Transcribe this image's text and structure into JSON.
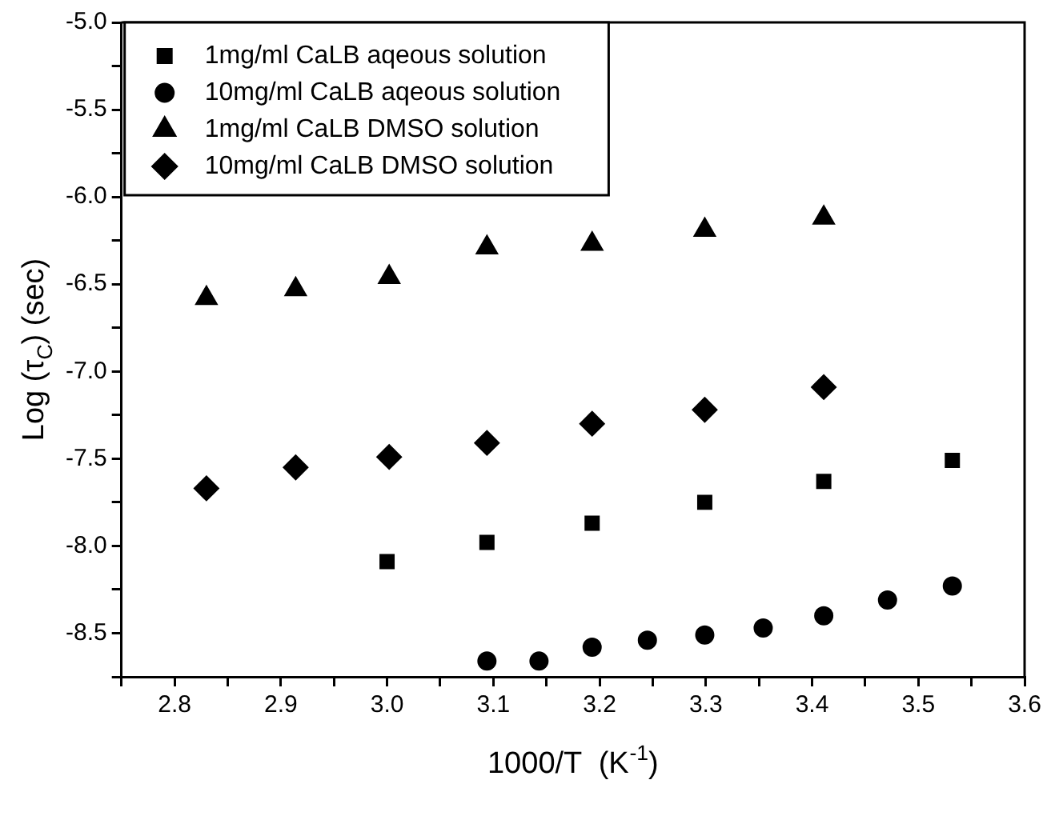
{
  "chart_data": {
    "type": "scatter",
    "xlabel": "1000/T  (K$^{-1}$)",
    "ylabel": "Log (τ$_{C}$) (sec)",
    "xlim": [
      2.75,
      3.6
    ],
    "xticks": [
      {
        "value": 2.75,
        "label": null
      },
      2.8,
      {
        "value": 2.85,
        "label": null
      },
      2.9,
      {
        "value": 2.95,
        "label": null
      },
      {
        "value": 3.0,
        "label": "3.0"
      },
      {
        "value": 3.05,
        "label": null
      },
      3.1,
      {
        "value": 3.15,
        "label": null
      },
      3.2,
      {
        "value": 3.25,
        "label": null
      },
      3.3,
      {
        "value": 3.35,
        "label": null
      },
      3.4,
      {
        "value": 3.45,
        "label": null
      },
      3.5,
      {
        "value": 3.55,
        "label": null
      },
      3.6
    ],
    "ylim": [
      -8.75,
      -5.0
    ],
    "yticks": [
      {
        "value": -8.75,
        "label": null
      },
      -8.5,
      {
        "value": -8.25,
        "label": null
      },
      {
        "value": -8.0,
        "label": "-8.0"
      },
      {
        "value": -7.75,
        "label": null
      },
      -7.5,
      {
        "value": -7.25,
        "label": null
      },
      {
        "value": -7.0,
        "label": "-7.0"
      },
      {
        "value": -6.75,
        "label": null
      },
      -6.5,
      {
        "value": -6.25,
        "label": null
      },
      {
        "value": -6.0,
        "label": "-6.0"
      },
      {
        "value": -5.75,
        "label": null
      },
      -5.5,
      {
        "value": -5.25,
        "label": null
      },
      {
        "value": -5.0,
        "label": "-5.0"
      }
    ],
    "grid": false,
    "legend": "top left",
    "series": [
      {
        "name": "1mg/ml CaLB aqeous solution",
        "color": "#000000",
        "marker": "square",
        "x": [
          3.0,
          3.094,
          3.193,
          3.299,
          3.411,
          3.532
        ],
        "values": [
          -8.09,
          -7.98,
          -7.87,
          -7.75,
          -7.63,
          -7.51
        ]
      },
      {
        "name": "10mg/ml CaLB aqeous solution",
        "color": "#000000",
        "marker": "circle",
        "x": [
          3.094,
          3.143,
          3.193,
          3.245,
          3.299,
          3.354,
          3.411,
          3.471,
          3.532
        ],
        "values": [
          -8.66,
          -8.66,
          -8.58,
          -8.54,
          -8.51,
          -8.47,
          -8.4,
          -8.31,
          -8.23
        ]
      },
      {
        "name": "1mg/ml CaLB DMSO solution",
        "color": "#000000",
        "marker": "triangle",
        "x": [
          2.83,
          2.914,
          3.002,
          3.094,
          3.193,
          3.299,
          3.411
        ],
        "values": [
          -6.58,
          -6.53,
          -6.46,
          -6.29,
          -6.27,
          -6.19,
          -6.12
        ]
      },
      {
        "name": "10mg/ml CaLB DMSO solution",
        "color": "#000000",
        "marker": "diamond",
        "x": [
          2.83,
          2.914,
          3.002,
          3.094,
          3.193,
          3.299,
          3.411
        ],
        "values": [
          -7.67,
          -7.55,
          -7.49,
          -7.41,
          -7.3,
          -7.22,
          -7.09
        ]
      }
    ]
  }
}
